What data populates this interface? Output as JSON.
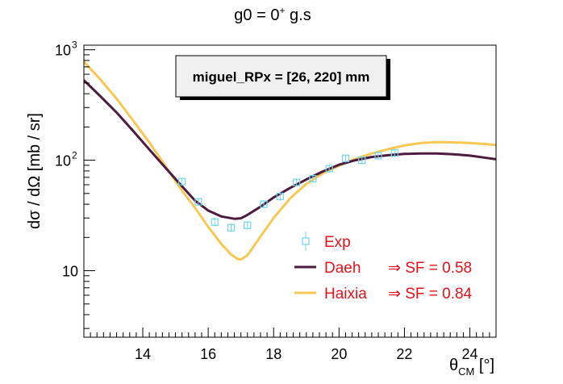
{
  "chart_data": {
    "type": "line",
    "title": {
      "main": "g0 = 0",
      "sup": "+",
      "rest": " g.s"
    },
    "annotation": "miguel_RPx = [26, 220] mm",
    "xlabel": {
      "main": "θ",
      "sub": "CM",
      "rest": " [°]"
    },
    "ylabel": "dσ / dΩ [mb / sr]",
    "xlim": [
      12.2,
      24.8
    ],
    "ylim": [
      2.5,
      1100
    ],
    "yscale": "log",
    "x_ticks": [
      14,
      16,
      18,
      20,
      22,
      24
    ],
    "x_tick_labels": [
      "14",
      "16",
      "18",
      "20",
      "22",
      "24"
    ],
    "y_tick_labels": [
      {
        "value": 10,
        "base": "10",
        "exp": ""
      },
      {
        "value": 100,
        "base": "10",
        "exp": "2"
      },
      {
        "value": 1000,
        "base": "10",
        "exp": "3"
      }
    ],
    "grid": false,
    "legend_position": "bottom-right",
    "series": [
      {
        "name": "Exp",
        "kind": "points",
        "color": "#6fd6ee",
        "x": [
          15.2,
          15.7,
          16.2,
          16.7,
          17.2,
          17.7,
          18.2,
          18.7,
          19.2,
          19.7,
          20.2,
          20.7,
          21.2,
          21.7
        ],
        "y": [
          64,
          42,
          27.5,
          24.5,
          25.8,
          40,
          47,
          63,
          68,
          84,
          104,
          100,
          110,
          116
        ],
        "yerr": [
          3,
          2,
          1.5,
          1.5,
          1.5,
          2,
          2.5,
          3,
          3,
          4,
          5,
          5,
          5,
          5
        ]
      },
      {
        "name": "Daeh",
        "legend_suffix": "⇒ SF = 0.58",
        "kind": "line",
        "color": "#4d1a40",
        "x": [
          12.2,
          12.7,
          13.2,
          13.7,
          14.2,
          14.7,
          15.2,
          15.6,
          16.0,
          16.4,
          16.8,
          17.0,
          17.2,
          17.6,
          18.0,
          18.5,
          19.0,
          19.5,
          20.0,
          20.5,
          21.0,
          21.5,
          22.0,
          22.5,
          23.0,
          23.5,
          24.0,
          24.5,
          24.8
        ],
        "y": [
          530,
          380,
          270,
          185,
          125,
          85,
          58,
          43,
          35,
          31,
          29.5,
          29.8,
          32,
          38,
          46,
          56,
          67,
          79,
          91,
          100,
          107,
          111,
          114,
          115,
          115,
          113,
          110,
          105,
          102
        ]
      },
      {
        "name": "Haixia",
        "legend_suffix": "⇒ SF = 0.84",
        "kind": "line",
        "color": "#f8c855",
        "x": [
          12.2,
          12.7,
          13.2,
          13.7,
          14.2,
          14.7,
          15.2,
          15.6,
          16.0,
          16.4,
          16.7,
          16.9,
          17.0,
          17.2,
          17.5,
          18.0,
          18.5,
          19.0,
          19.5,
          20.0,
          20.5,
          21.0,
          21.5,
          22.0,
          22.5,
          23.0,
          23.5,
          24.0,
          24.5,
          24.8
        ],
        "y": [
          780,
          540,
          360,
          230,
          145,
          88,
          53,
          37,
          25,
          17.5,
          14,
          12.8,
          12.6,
          13.8,
          18.5,
          30,
          45,
          61,
          76,
          89,
          103,
          115,
          126,
          136,
          143,
          146,
          145,
          143,
          140,
          137
        ]
      }
    ]
  }
}
